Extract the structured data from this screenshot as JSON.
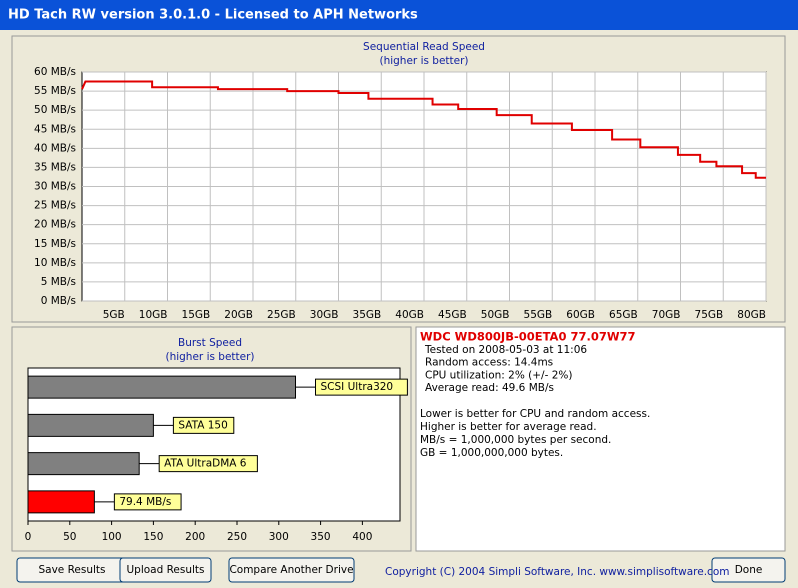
{
  "window": {
    "title": "HD Tach RW version 3.0.1.0 - Licensed to APH Networks"
  },
  "chart_data": [
    {
      "type": "line",
      "title": "Sequential Read Speed",
      "subtitle": "(higher is better)",
      "xlim": [
        0,
        80
      ],
      "ylim": [
        0,
        60
      ],
      "grid": true,
      "xticks": [
        {
          "value": 5,
          "label": "5GB"
        },
        {
          "value": 10,
          "label": "10GB"
        },
        {
          "value": 15,
          "label": "15GB"
        },
        {
          "value": 20,
          "label": "20GB"
        },
        {
          "value": 25,
          "label": "25GB"
        },
        {
          "value": 30,
          "label": "30GB"
        },
        {
          "value": 35,
          "label": "35GB"
        },
        {
          "value": 40,
          "label": "40GB"
        },
        {
          "value": 45,
          "label": "45GB"
        },
        {
          "value": 50,
          "label": "50GB"
        },
        {
          "value": 55,
          "label": "55GB"
        },
        {
          "value": 60,
          "label": "60GB"
        },
        {
          "value": 65,
          "label": "65GB"
        },
        {
          "value": 70,
          "label": "70GB"
        },
        {
          "value": 75,
          "label": "75GB"
        },
        {
          "value": 80,
          "label": "80GB"
        }
      ],
      "yticks": [
        {
          "value": 0,
          "label": "0 MB/s"
        },
        {
          "value": 5,
          "label": "5 MB/s"
        },
        {
          "value": 10,
          "label": "10 MB/s"
        },
        {
          "value": 15,
          "label": "15 MB/s"
        },
        {
          "value": 20,
          "label": "20 MB/s"
        },
        {
          "value": 25,
          "label": "25 MB/s"
        },
        {
          "value": 30,
          "label": "30 MB/s"
        },
        {
          "value": 35,
          "label": "35 MB/s"
        },
        {
          "value": 40,
          "label": "40 MB/s"
        },
        {
          "value": 45,
          "label": "45 MB/s"
        },
        {
          "value": 50,
          "label": "50 MB/s"
        },
        {
          "value": 55,
          "label": "55 MB/s"
        },
        {
          "value": 60,
          "label": "60 MB/s"
        }
      ],
      "series": [
        {
          "color": "#e00000",
          "x": [
            0,
            0.4,
            8.2,
            8.2,
            15.9,
            15.9,
            24,
            24,
            30,
            30,
            33.5,
            33.5,
            41,
            41,
            44,
            44,
            48.5,
            48.5,
            52.6,
            52.6,
            57.3,
            57.3,
            62,
            62,
            65.3,
            65.3,
            69.7,
            69.7,
            72.3,
            72.3,
            74.2,
            74.2,
            77.2,
            77.2,
            78.8,
            78.8,
            80
          ],
          "y": [
            55.5,
            57.5,
            57.5,
            56,
            56,
            55.5,
            55.5,
            55,
            55,
            54.5,
            54.5,
            53,
            53,
            51.5,
            51.5,
            50.3,
            50.3,
            48.7,
            48.7,
            46.5,
            46.5,
            44.8,
            44.8,
            42.3,
            42.3,
            40.3,
            40.3,
            38.3,
            38.3,
            36.5,
            36.5,
            35.3,
            35.3,
            33.5,
            33.5,
            32.3,
            32.3
          ]
        }
      ]
    },
    {
      "type": "bar",
      "orientation": "horizontal",
      "title": "Burst Speed",
      "subtitle": "(higher is better)",
      "xlim": [
        0,
        445
      ],
      "xticks": [
        0,
        50,
        100,
        150,
        200,
        250,
        300,
        350,
        400
      ],
      "categories": [
        "SCSI Ultra320",
        "SATA 150",
        "ATA UltraDMA 6",
        null
      ],
      "values": [
        320,
        150,
        133,
        79.4
      ],
      "value_labels": [
        null,
        null,
        null,
        "79.4 MB/s"
      ],
      "colors": [
        "#808080",
        "#808080",
        "#808080",
        "#ff0000"
      ]
    }
  ],
  "info": {
    "drive": "WDC WD800JB-00ETA0 77.07W77",
    "details": [
      "Tested on 2008-05-03 at 11:06",
      "Random access: 14.4ms",
      "CPU utilization: 2% (+/- 2%)",
      "Average read: 49.6 MB/s"
    ],
    "notes": [
      "Lower is better for CPU and random access.",
      "Higher is better for average read.",
      "MB/s = 1,000,000 bytes per second.",
      "GB = 1,000,000,000 bytes."
    ]
  },
  "buttons": [
    "Save Results",
    "Upload Results",
    "Compare Another Drive",
    "Done"
  ],
  "footer": "Copyright (C) 2004 Simpli Software, Inc. www.simplisoftware.com"
}
